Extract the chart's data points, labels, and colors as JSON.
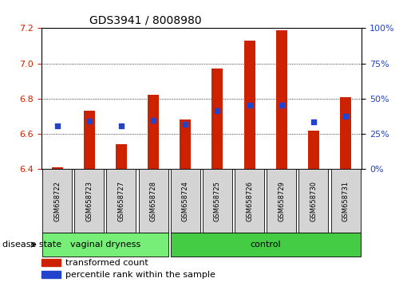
{
  "title": "GDS3941 / 8008980",
  "samples": [
    "GSM658722",
    "GSM658723",
    "GSM658727",
    "GSM658728",
    "GSM658724",
    "GSM658725",
    "GSM658726",
    "GSM658729",
    "GSM658730",
    "GSM658731"
  ],
  "bar_values": [
    6.41,
    6.73,
    6.54,
    6.82,
    6.68,
    6.97,
    7.13,
    7.19,
    6.62,
    6.81
  ],
  "blue_dot_values": [
    6.645,
    6.675,
    6.648,
    6.678,
    6.655,
    6.733,
    6.762,
    6.762,
    6.668,
    6.7
  ],
  "ymin": 6.4,
  "ymax": 7.2,
  "bar_color": "#cc2200",
  "dot_color": "#2244cc",
  "group1_label": "vaginal dryness",
  "group2_label": "control",
  "group1_color": "#77ee77",
  "group2_color": "#44cc44",
  "group1_indices": [
    0,
    1,
    2,
    3
  ],
  "group2_indices": [
    4,
    5,
    6,
    7,
    8,
    9
  ],
  "disease_state_label": "disease state",
  "legend_bar_label": "transformed count",
  "legend_dot_label": "percentile rank within the sample",
  "bar_width": 0.35,
  "yaxis_left_ticks": [
    6.4,
    6.6,
    6.8,
    7.0,
    7.2
  ],
  "yaxis_right_ticks": [
    0,
    25,
    50,
    75,
    100
  ],
  "grid_values": [
    6.6,
    6.8,
    7.0
  ],
  "sample_box_color": "#d4d4d4",
  "title_fontsize": 10,
  "tick_fontsize": 8,
  "label_fontsize": 8,
  "legend_fontsize": 8
}
